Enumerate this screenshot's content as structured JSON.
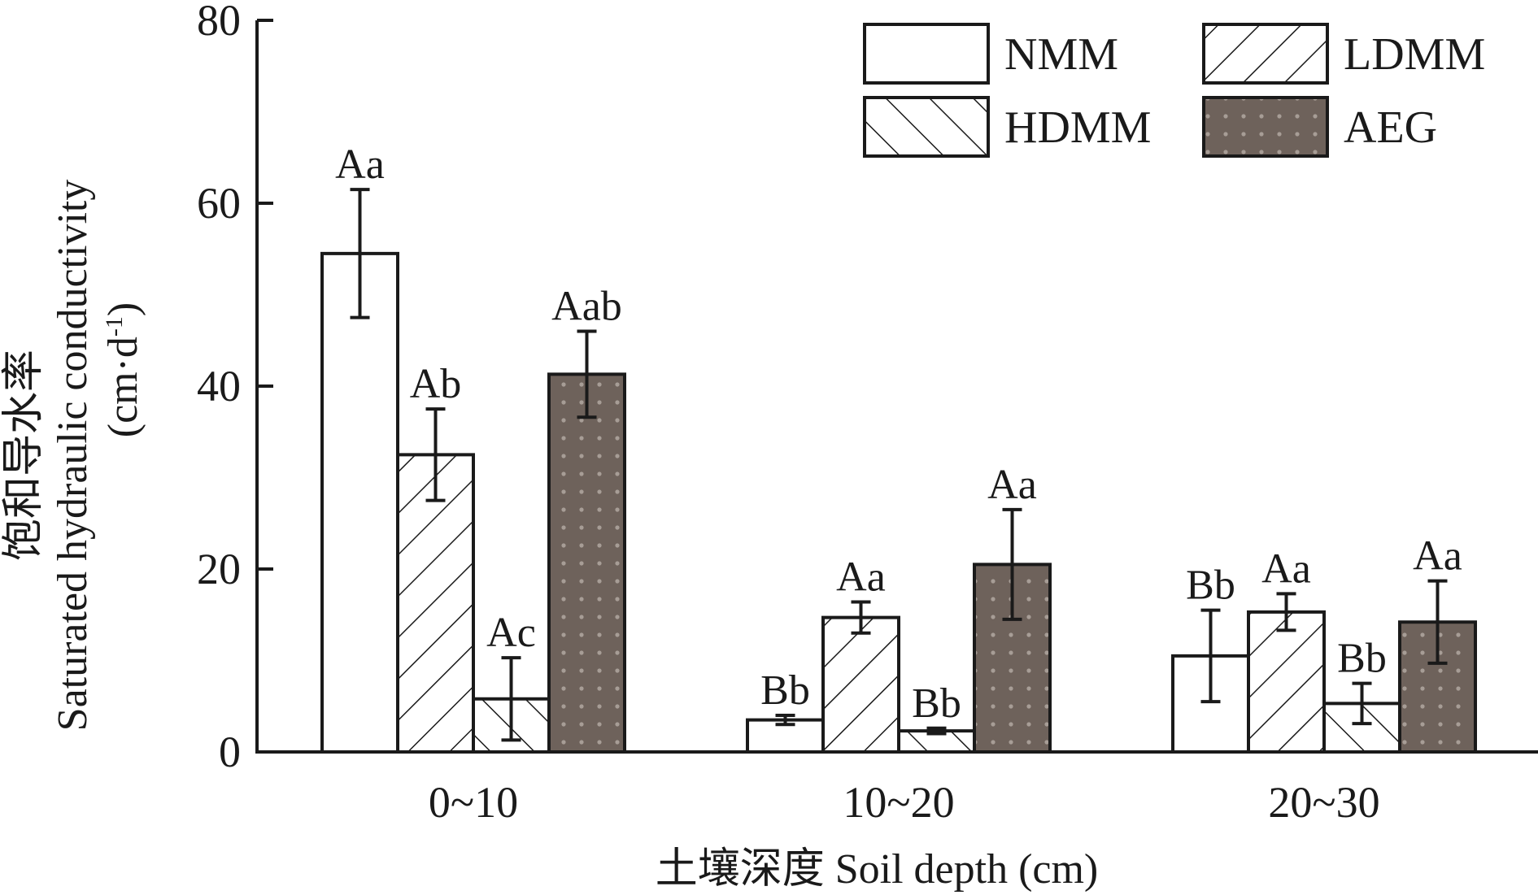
{
  "chart_data": {
    "type": "bar",
    "xlabel": "土壤深度 Soil depth (cm)",
    "ylabel_cn": "饱和导水率",
    "ylabel_en": "Saturated hydraulic conductivity",
    "ylabel_unit": "(cm·d",
    "ylabel_unit_sup": "-1",
    "ylabel_unit_close": ")",
    "ylim": [
      0,
      80
    ],
    "yticks": [
      0,
      20,
      40,
      60,
      80
    ],
    "ytick_labels": [
      "0",
      "20",
      "40",
      "60",
      "80"
    ],
    "categories": [
      "0~10",
      "10~20",
      "20~30"
    ],
    "legend": {
      "placement": "top-right",
      "columns": 2
    },
    "series": [
      {
        "name": "NMM",
        "pattern": "white",
        "values": [
          54.5,
          3.5,
          10.5
        ],
        "errors": [
          7.0,
          0.5,
          5.0
        ],
        "labels": [
          "Aa",
          "Bb",
          "Bb"
        ]
      },
      {
        "name": "LDMM",
        "pattern": "forward-hatch",
        "values": [
          32.5,
          14.7,
          15.3
        ],
        "errors": [
          5.0,
          1.7,
          2.0
        ],
        "labels": [
          "Ab",
          "Aa",
          "Aa"
        ]
      },
      {
        "name": "HDMM",
        "pattern": "back-hatch",
        "values": [
          5.8,
          2.3,
          5.3
        ],
        "errors": [
          4.5,
          0.3,
          2.2
        ],
        "labels": [
          "Ac",
          "Bb",
          "Bb"
        ]
      },
      {
        "name": "AEG",
        "pattern": "dark-dots",
        "values": [
          41.3,
          20.5,
          14.2
        ],
        "errors": [
          4.7,
          6.0,
          4.5
        ],
        "labels": [
          "Aab",
          "Aa",
          "Aa"
        ]
      }
    ],
    "colors": {
      "axis": "#1a1a1a",
      "bar_fill": "#ffffff",
      "aeg_fill": "#6e625b",
      "aeg_dot": "#a79d96"
    }
  }
}
